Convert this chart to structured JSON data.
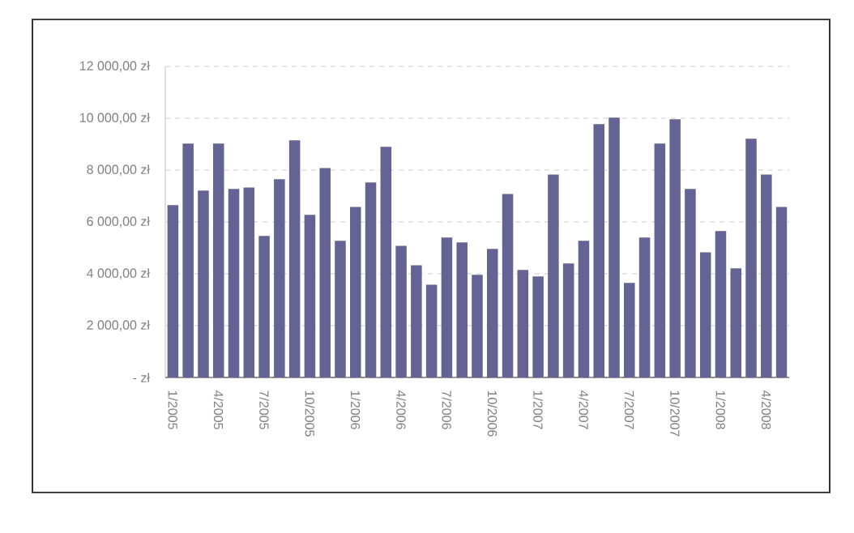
{
  "chart_data": {
    "type": "bar",
    "categories": [
      "1/2005",
      null,
      null,
      "4/2005",
      null,
      null,
      "7/2005",
      null,
      null,
      "10/2005",
      null,
      null,
      "1/2006",
      null,
      null,
      "4/2006",
      null,
      null,
      "7/2006",
      null,
      null,
      "10/2006",
      null,
      null,
      "1/2007",
      null,
      null,
      "4/2007",
      null,
      null,
      "7/2007",
      null,
      null,
      "10/2007",
      null,
      null,
      "1/2008",
      null,
      null,
      "4/2008",
      null
    ],
    "values": [
      6650,
      9020,
      7210,
      9020,
      7270,
      7330,
      5460,
      7650,
      9150,
      6270,
      8080,
      5270,
      6580,
      7520,
      8900,
      5080,
      4330,
      3580,
      5400,
      5210,
      3960,
      4960,
      7080,
      4150,
      3900,
      7830,
      4400,
      5270,
      9770,
      10020,
      3650,
      5400,
      9020,
      9960,
      7270,
      4830,
      5650,
      4210,
      9210,
      7830,
      6580
    ],
    "color": "#636394",
    "ylim": [
      0,
      12000
    ],
    "yticks": [
      {
        "value": 0,
        "label": "-      zł"
      },
      {
        "value": 2000,
        "label": "2 000,00 zł"
      },
      {
        "value": 4000,
        "label": "4 000,00 zł"
      },
      {
        "value": 6000,
        "label": "6 000,00 zł"
      },
      {
        "value": 8000,
        "label": "8 000,00 zł"
      },
      {
        "value": 10000,
        "label": "10 000,00 zł"
      },
      {
        "value": 12000,
        "label": "12 000,00 zł"
      }
    ],
    "grid": "y"
  }
}
